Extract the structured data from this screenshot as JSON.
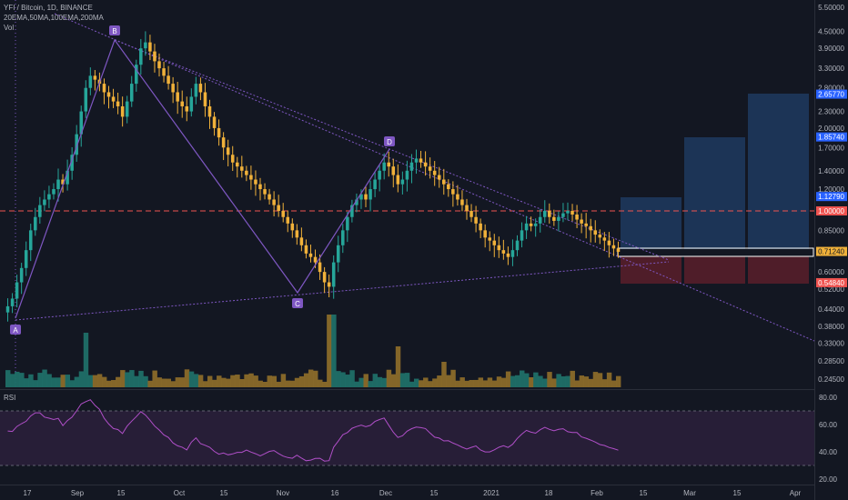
{
  "header": {
    "symbol_line": "YFI / Bitcoin, 1D, BINANCE",
    "ma_line": "20EMA,50MA,100EMA,200MA",
    "vol_label": "Vol"
  },
  "rsi_panel": {
    "title": "RSI"
  },
  "colors": {
    "background": "#131722",
    "up": "#26a69a",
    "down": "#f0b13a",
    "pattern": "#7e57c2",
    "resistance": "#ef5350",
    "target_zone": "#1f3a5f",
    "stop_zone": "#5b1f2a",
    "rsi_line": "#b04fc8",
    "rsi_band": "#2a1f3a"
  },
  "chart_data": {
    "type": "candlestick",
    "price_axis_ticks": [
      "5.50000",
      "4.50000",
      "3.90000",
      "3.30000",
      "2.80000",
      "2.30000",
      "2.00000",
      "1.70000",
      "1.40000",
      "1.20000",
      "1.00000",
      "0.85000",
      "0.72000",
      "0.60000",
      "0.52000",
      "0.44000",
      "0.38000",
      "0.33000",
      "0.28500",
      "0.24500"
    ],
    "price_axis_badges": [
      {
        "label": "2.65770",
        "color": "#2962ff"
      },
      {
        "label": "1.85740",
        "color": "#2962ff"
      },
      {
        "label": "1.12790",
        "color": "#2962ff"
      },
      {
        "label": "1.00000",
        "color": "#ef5350"
      },
      {
        "label": "0.71240",
        "color": "#f0b13a"
      },
      {
        "label": "0.54840",
        "color": "#ef5350"
      }
    ],
    "time_axis_ticks": [
      "17",
      "Sep",
      "15",
      "Oct",
      "15",
      "Nov",
      "16",
      "Dec",
      "15",
      "2021",
      "18",
      "Feb",
      "15",
      "Mar",
      "15",
      "Apr"
    ],
    "pattern_points": [
      {
        "label": "A",
        "price": 0.4
      },
      {
        "label": "B",
        "price": 4.35
      },
      {
        "label": "C",
        "price": 0.52
      },
      {
        "label": "D",
        "price": 1.58
      }
    ],
    "resistance_level": 1.0,
    "last_price": 0.7124,
    "target_levels": [
      1.1279,
      1.8574,
      2.6577
    ],
    "stop_level": 0.5484,
    "rsi_ticks": [
      "80.00",
      "60.00",
      "40.00",
      "20.00"
    ],
    "rsi_band": [
      30,
      70
    ],
    "close_series": [
      0.45,
      0.48,
      0.55,
      0.62,
      0.72,
      0.85,
      0.95,
      1.05,
      1.1,
      1.15,
      1.2,
      1.3,
      1.25,
      1.4,
      1.6,
      1.9,
      2.3,
      2.8,
      3.1,
      3.0,
      2.9,
      2.7,
      2.6,
      2.5,
      2.4,
      2.2,
      2.5,
      2.9,
      3.4,
      3.9,
      4.1,
      3.8,
      3.5,
      3.3,
      3.1,
      2.9,
      2.7,
      2.5,
      2.4,
      2.3,
      2.6,
      2.9,
      2.7,
      2.4,
      2.2,
      2.0,
      1.85,
      1.7,
      1.6,
      1.5,
      1.45,
      1.4,
      1.35,
      1.3,
      1.25,
      1.2,
      1.15,
      1.1,
      1.05,
      1.0,
      0.95,
      0.9,
      0.85,
      0.8,
      0.75,
      0.7,
      0.68,
      0.65,
      0.6,
      0.55,
      0.53,
      0.65,
      0.75,
      0.85,
      0.95,
      1.05,
      1.1,
      1.15,
      1.1,
      1.2,
      1.3,
      1.4,
      1.5,
      1.45,
      1.35,
      1.25,
      1.3,
      1.4,
      1.5,
      1.55,
      1.5,
      1.45,
      1.4,
      1.35,
      1.3,
      1.25,
      1.2,
      1.15,
      1.1,
      1.05,
      1.0,
      0.95,
      0.9,
      0.85,
      0.8,
      0.78,
      0.75,
      0.72,
      0.7,
      0.68,
      0.72,
      0.78,
      0.85,
      0.9,
      0.88,
      0.9,
      0.95,
      1.0,
      0.95,
      0.92,
      0.95,
      0.98,
      1.0,
      0.97,
      0.93,
      0.9,
      0.88,
      0.85,
      0.82,
      0.8,
      0.78,
      0.75,
      0.73,
      0.71
    ]
  }
}
